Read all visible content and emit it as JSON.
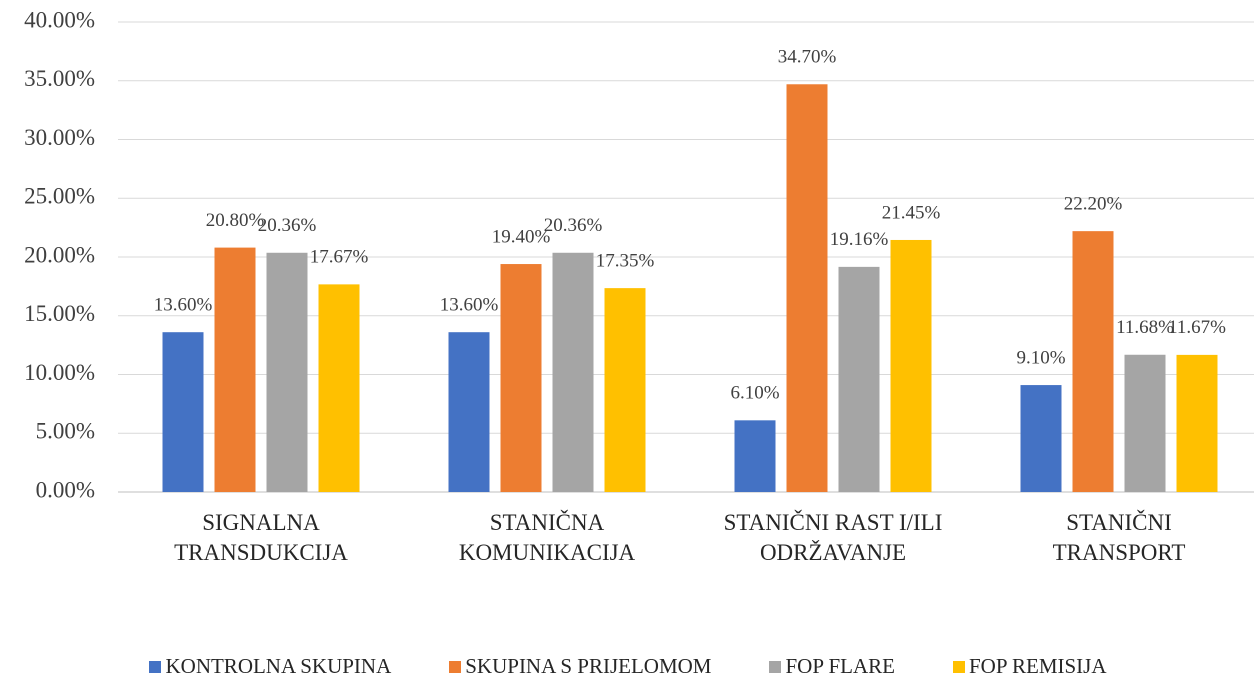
{
  "chart_data": {
    "type": "bar",
    "categories": [
      "SIGNALNA\nTRANSDUKCIJA",
      "STANIČNA\nKOMUNIKACIJA",
      "STANIČNI RAST I/ILI\nODRŽAVANJE",
      "STANIČNI\nTRANSPORT"
    ],
    "series": [
      {
        "name": "KONTROLNA SKUPINA",
        "color": "#4472c4",
        "values": [
          13.6,
          13.6,
          6.1,
          9.1
        ],
        "value_labels": [
          "13.60%",
          "13.60%",
          "6.10%",
          "9.10%"
        ]
      },
      {
        "name": "SKUPINA S PRIJELOMOM",
        "color": "#ed7d31",
        "values": [
          20.8,
          19.4,
          34.7,
          22.2
        ],
        "value_labels": [
          "20.80%",
          "19.40%",
          "34.70%",
          "22.20%"
        ]
      },
      {
        "name": "FOP FLARE",
        "color": "#a5a5a5",
        "values": [
          20.36,
          20.36,
          19.16,
          11.68
        ],
        "value_labels": [
          "20.36%",
          "20.36%",
          "19.16%",
          "11.68%"
        ]
      },
      {
        "name": "FOP REMISIJA",
        "color": "#ffc000",
        "values": [
          17.67,
          17.35,
          21.45,
          11.67
        ],
        "value_labels": [
          "17.67%",
          "17.35%",
          "21.45%",
          "11.67%"
        ]
      }
    ],
    "ylim": [
      0,
      40
    ],
    "yticks": [
      {
        "value": 0,
        "label": "0.00%"
      },
      {
        "value": 5,
        "label": "5.00%"
      },
      {
        "value": 10,
        "label": "10.00%"
      },
      {
        "value": 15,
        "label": "15.00%"
      },
      {
        "value": 20,
        "label": "20.00%"
      },
      {
        "value": 25,
        "label": "25.00%"
      },
      {
        "value": 30,
        "label": "30.00%"
      },
      {
        "value": 35,
        "label": "35.00%"
      },
      {
        "value": 40,
        "label": "40.00%"
      }
    ],
    "grid": true,
    "legend": "bottom"
  }
}
